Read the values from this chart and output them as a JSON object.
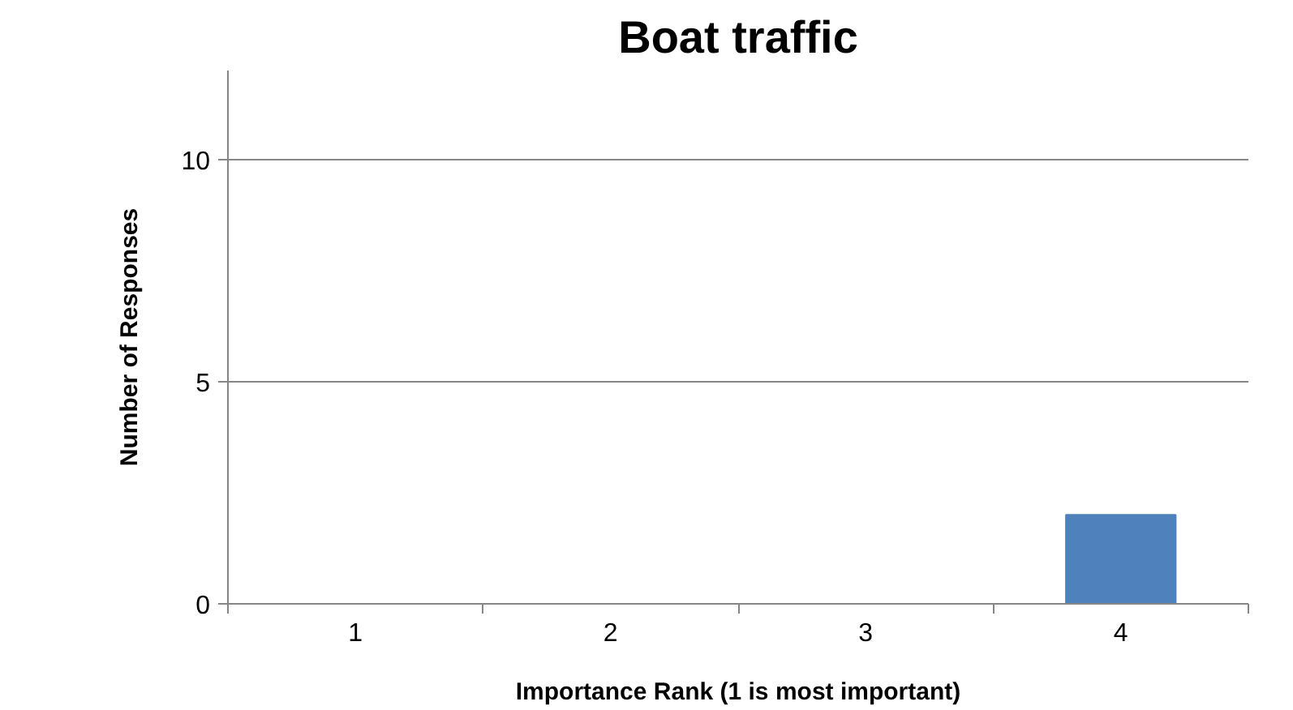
{
  "chart_data": {
    "type": "bar",
    "title": "Boat traffic",
    "xlabel": "Importance Rank (1 is most important)",
    "ylabel": "Number of Responses",
    "categories": [
      "1",
      "2",
      "3",
      "4"
    ],
    "values": [
      0,
      0,
      0,
      2
    ],
    "color": "#4f81bd",
    "ylim": [
      0,
      12
    ],
    "yticks": [
      0,
      5,
      10
    ],
    "grid": "y"
  }
}
